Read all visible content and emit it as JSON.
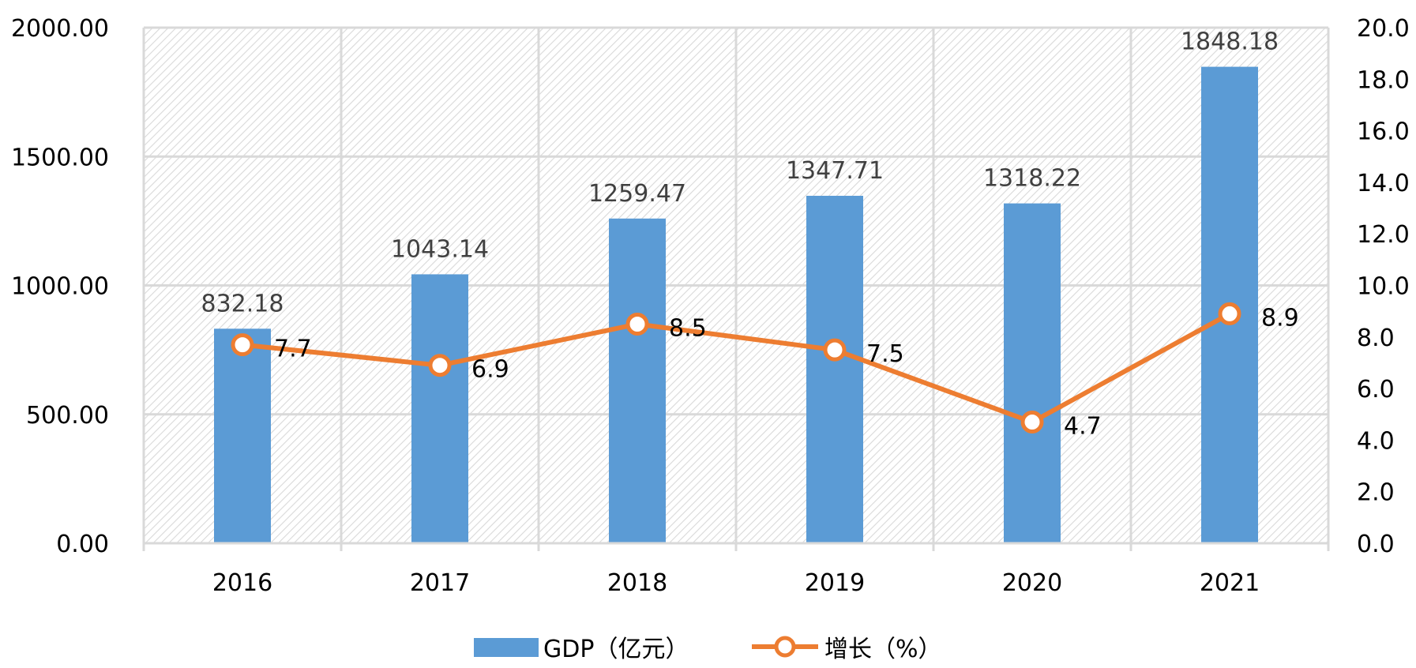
{
  "chart_data": {
    "type": "bar",
    "categories": [
      "2016",
      "2017",
      "2018",
      "2019",
      "2020",
      "2021"
    ],
    "series": [
      {
        "name": "GDP（亿元）",
        "type": "bar",
        "axis": "left",
        "values": [
          832.18,
          1043.14,
          1259.47,
          1347.71,
          1318.22,
          1848.18
        ],
        "labels": [
          "832.18",
          "1043.14",
          "1259.47",
          "1347.71",
          "1318.22",
          "1848.18"
        ],
        "color": "#5B9BD5"
      },
      {
        "name": "增长（%）",
        "type": "line",
        "axis": "right",
        "values": [
          7.7,
          6.9,
          8.5,
          7.5,
          4.7,
          8.9
        ],
        "labels": [
          "7.7",
          "6.9",
          "8.5",
          "7.5",
          "4.7",
          "8.9"
        ],
        "color": "#ED7D31"
      }
    ],
    "y_left": {
      "lim": [
        0,
        2000
      ],
      "ticks": [
        0,
        500,
        1000,
        1500,
        2000
      ],
      "tick_labels": [
        "0.00",
        "500.00",
        "1000.00",
        "1500.00",
        "2000.00"
      ]
    },
    "y_right": {
      "lim": [
        0,
        20
      ],
      "ticks": [
        0,
        2,
        4,
        6,
        8,
        10,
        12,
        14,
        16,
        18,
        20
      ],
      "tick_labels": [
        "0.0",
        "2.0",
        "4.0",
        "6.0",
        "8.0",
        "10.0",
        "12.0",
        "14.0",
        "16.0",
        "18.0",
        "20.0"
      ]
    },
    "grid": true,
    "legend_position": "bottom-center",
    "title": "",
    "xlabel": "",
    "ylabel": ""
  }
}
